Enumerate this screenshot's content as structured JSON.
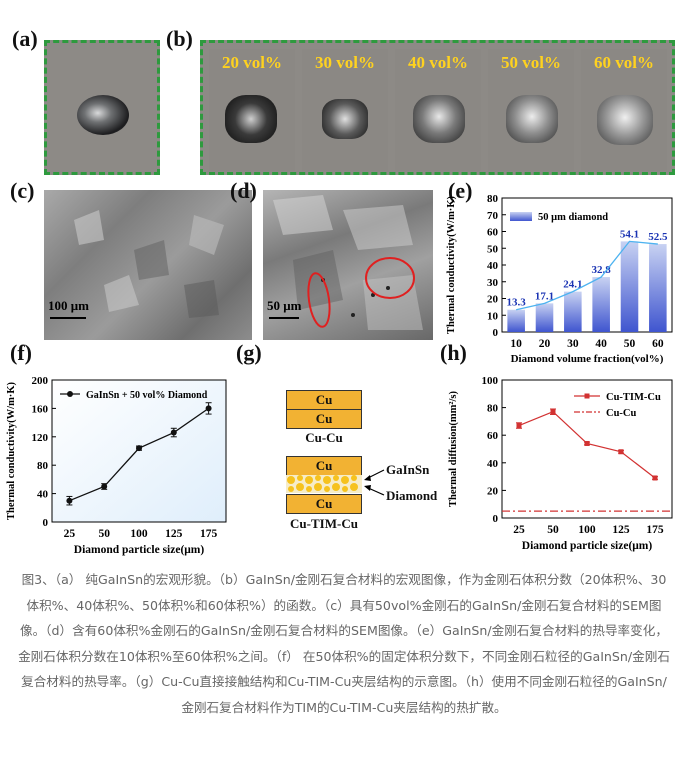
{
  "panel_labels": {
    "a": "(a)",
    "b": "(b)",
    "c": "(c)",
    "d": "(d)",
    "e": "(e)",
    "f": "(f)",
    "g": "(g)",
    "h": "(h)"
  },
  "panel_b_tiles": [
    "20 vol%",
    "30 vol%",
    "40 vol%",
    "50 vol%",
    "60 vol%"
  ],
  "scale_bars": {
    "c": "100 μm",
    "d": "50 μm"
  },
  "colors": {
    "frame": "#2e9a3e",
    "tile_label": "#ffd21f",
    "bar_top": "#c8d2f2",
    "bar_bottom": "#3f55cf",
    "line_f": "#111111",
    "line_h": "#d23232",
    "copper": "#f2b233",
    "label_e": "#1a33b3"
  },
  "chart_data": [
    {
      "id": "e",
      "type": "bar",
      "categories": [
        "10",
        "20",
        "30",
        "40",
        "50",
        "60"
      ],
      "values": [
        13.3,
        17.1,
        24.1,
        32.8,
        54.1,
        52.5
      ],
      "value_labels": [
        "13.3",
        "17.1",
        "24.1",
        "32.8",
        "54.1",
        "52.5"
      ],
      "legend": "50 μm diamond",
      "xlabel": "Diamond volume fraction(vol%)",
      "ylabel": "Thermal conductivity(W/m·K)",
      "ylim": [
        0,
        80
      ],
      "yticks": [
        "0",
        "10",
        "20",
        "30",
        "40",
        "50",
        "60",
        "70",
        "80"
      ]
    },
    {
      "id": "f",
      "type": "line",
      "x": [
        "25",
        "50",
        "100",
        "125",
        "175"
      ],
      "values": [
        30,
        50,
        104,
        126,
        160
      ],
      "errors": [
        6,
        4,
        3,
        6,
        8
      ],
      "legend": "GaInSn + 50 vol% Diamond",
      "xlabel": "Diamond particle size(μm)",
      "ylabel": "Thermal conductivity(W/m·K)",
      "ylim": [
        0,
        200
      ],
      "yticks": [
        "0",
        "40",
        "80",
        "120",
        "160",
        "200"
      ]
    },
    {
      "id": "h",
      "type": "line",
      "x": [
        "25",
        "50",
        "100",
        "125",
        "175"
      ],
      "series": [
        {
          "name": "Cu-TIM-Cu",
          "values": [
            67,
            77,
            54,
            48,
            29
          ],
          "errors": [
            2,
            2,
            1,
            1,
            1
          ]
        },
        {
          "name": "Cu-Cu",
          "values": [
            5,
            5,
            5,
            5,
            5
          ]
        }
      ],
      "xlabel": "Diamond particle size(μm)",
      "ylabel": "Thermal diffusion(mm²/s)",
      "ylim": [
        0,
        100
      ],
      "yticks": [
        "0",
        "20",
        "40",
        "60",
        "80",
        "100"
      ]
    }
  ],
  "diagram_g": {
    "cu": "Cu",
    "label_top": "Cu-Cu",
    "label_bottom": "Cu-TIM-Cu",
    "annot_gainsn": "GaInSn",
    "annot_diamond": "Diamond"
  },
  "caption": "图3、（a） 纯GaInSn的宏观形貌。（b）GaInSn/金刚石复合材料的宏观图像，作为金刚石体积分数（20体积%、30体积%、40体积%、50体积%和60体积%）的函数。（c）具有50vol%金刚石的GaInSn/金刚石复合材料的SEM图像。（d）含有60体积%金刚石的GaInSn/金刚石复合材料的SEM图像。（e）GaInSn/金刚石复合材料的热导率变化，金刚石体积分数在10体积%至60体积%之间。（f） 在50体积%的固定体积分数下，不同金刚石粒径的GaInSn/金刚石复合材料的热导率。（g）Cu-Cu直接接触结构和Cu-TIM-Cu夹层结构的示意图。（h）使用不同金刚石粒径的GaInSn/金刚石复合材料作为TIM的Cu-TIM-Cu夹层结构的热扩散。"
}
